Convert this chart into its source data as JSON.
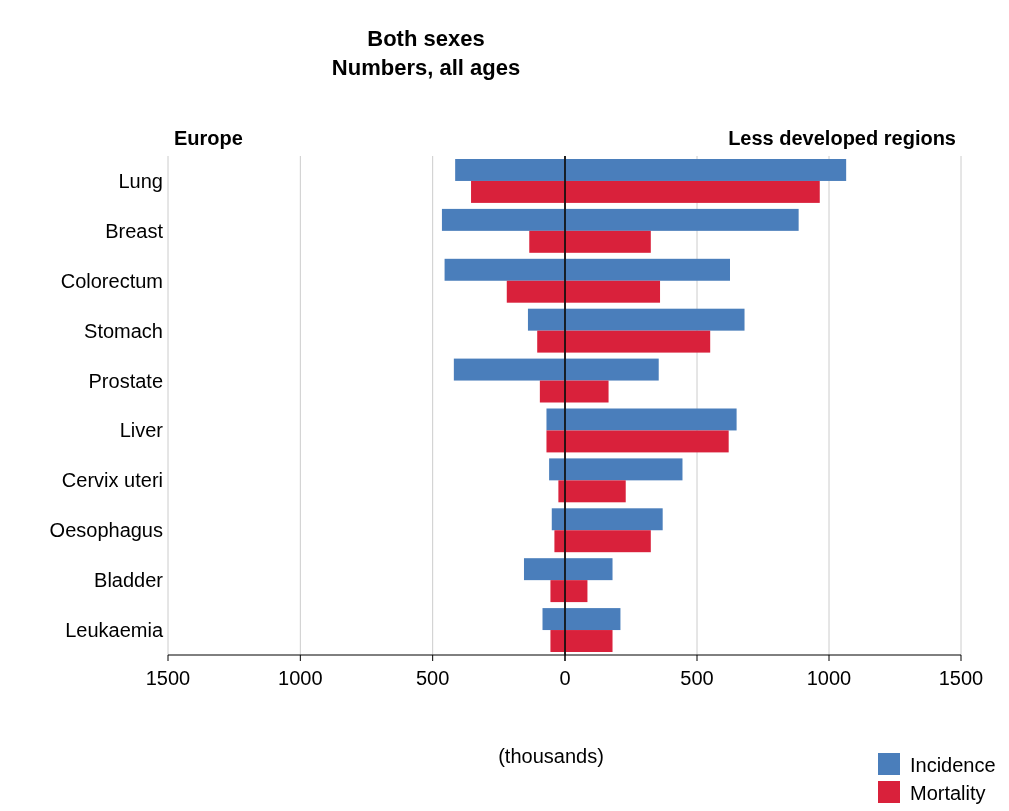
{
  "chart_data": [
    {
      "type": "bar",
      "orientation": "horizontal",
      "title": "Europe",
      "annotations": [
        "Both sexes",
        "Numbers, all ages"
      ],
      "categories": [
        "Lung",
        "Breast",
        "Colorectum",
        "Stomach",
        "Prostate",
        "Liver",
        "Cervix uteri",
        "Oesophagus",
        "Bladder",
        "Leukaemia"
      ],
      "series": [
        {
          "color": "#4a7ebb",
          "values": [
            415,
            465,
            455,
            140,
            420,
            70,
            60,
            50,
            155,
            85
          ]
        },
        {
          "color": "#d9213b",
          "values": [
            355,
            135,
            220,
            105,
            95,
            70,
            25,
            40,
            55,
            55
          ]
        }
      ],
      "xlim": [
        1500,
        0
      ],
      "xticks": [
        1500,
        1000,
        500,
        0
      ],
      "grid": "x"
    },
    {
      "type": "bar",
      "orientation": "horizontal",
      "title": "Less developed regions",
      "xlabel": "(thousands)",
      "categories": [
        null,
        null,
        null,
        null,
        null,
        null,
        null,
        null,
        null,
        null
      ],
      "series": [
        {
          "name": "Incidence",
          "color": "#4a7ebb",
          "values": [
            1065,
            885,
            625,
            680,
            355,
            650,
            445,
            370,
            180,
            210
          ]
        },
        {
          "name": "Mortality",
          "color": "#d9213b",
          "values": [
            965,
            325,
            360,
            550,
            165,
            620,
            230,
            325,
            85,
            180
          ]
        }
      ],
      "xlim": [
        0,
        1500
      ],
      "xticks": [
        {
          "value": 0,
          "label": null
        },
        500,
        1000,
        1500
      ],
      "grid": "x",
      "tick_labels": "x",
      "legend": "bottom right"
    }
  ]
}
